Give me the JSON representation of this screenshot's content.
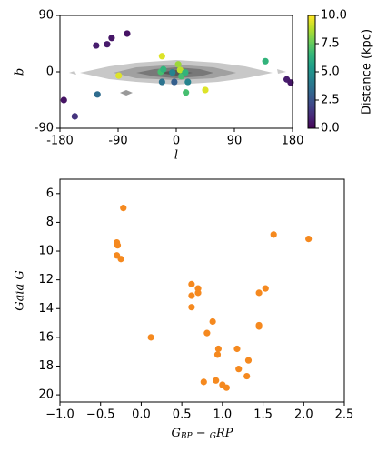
{
  "chart_data": [
    {
      "type": "scatter",
      "xlabel": "l",
      "ylabel": "b",
      "xlim": [
        -180,
        180
      ],
      "ylim": [
        -90,
        90
      ],
      "xticks": [
        -180,
        -90,
        0,
        90,
        180
      ],
      "yticks": [
        -90,
        0,
        90
      ],
      "cmap": "viridis",
      "clim": [
        0,
        10
      ],
      "colorbar_label": "Distance (kpc)",
      "cticks": [
        {
          "value": 0,
          "label": "0.0"
        },
        {
          "value": 2.5,
          "label": "2.5"
        },
        {
          "value": 5,
          "label": "5.0"
        },
        {
          "value": 7.5,
          "label": "7.5"
        },
        {
          "value": 10,
          "label": "10.0"
        }
      ],
      "x": [
        -174,
        -157,
        -122,
        -124,
        -107,
        -100,
        -76,
        -89,
        -22,
        -24,
        -20,
        -22,
        -6,
        -3,
        3,
        6,
        8,
        14,
        18,
        15,
        45,
        138,
        171,
        177
      ],
      "y": [
        -45,
        -71,
        -36,
        42,
        44,
        54,
        61,
        -6,
        25,
        0,
        4,
        -16,
        -1,
        -16,
        12,
        3,
        -7,
        -1,
        -16,
        -33,
        -29,
        17,
        -12,
        -17
      ],
      "c": [
        0.5,
        1.5,
        3.5,
        0.8,
        0.7,
        0.6,
        0.5,
        9.5,
        9.5,
        7,
        6.5,
        3.8,
        4.5,
        3,
        8.5,
        9,
        7,
        6.5,
        4.5,
        7,
        9.5,
        6.5,
        0.8,
        0.6
      ]
    },
    {
      "type": "scatter",
      "xlabel": [
        "G",
        "BP",
        " − ",
        "G",
        "RP"
      ],
      "ylabel": "Gaia G",
      "xlim": [
        -1,
        2.5
      ],
      "ylim": [
        20.5,
        5
      ],
      "color": "#f5891f",
      "xticks": [
        {
          "value": -1,
          "label": "−1.0"
        },
        {
          "value": -0.5,
          "label": "−0.5"
        },
        {
          "value": 0,
          "label": "0.0"
        },
        {
          "value": 0.5,
          "label": "0.5"
        },
        {
          "value": 1,
          "label": "1.0"
        },
        {
          "value": 1.5,
          "label": "1.5"
        },
        {
          "value": 2,
          "label": "2.0"
        },
        {
          "value": 2.5,
          "label": "2.5"
        }
      ],
      "yticks": [
        6,
        8,
        10,
        12,
        14,
        16,
        18,
        20
      ],
      "x": [
        -0.22,
        -0.3,
        -0.29,
        -0.3,
        -0.25,
        1.63,
        2.06,
        0.62,
        0.7,
        0.7,
        0.62,
        0.62,
        1.53,
        1.45,
        0.12,
        0.88,
        0.81,
        1.45,
        1.45,
        0.95,
        0.94,
        1.18,
        1.32,
        1.2,
        1.3,
        0.77,
        0.92,
        1.0,
        1.05
      ],
      "y": [
        7.0,
        9.4,
        9.6,
        10.3,
        10.55,
        8.85,
        9.15,
        12.3,
        12.6,
        12.9,
        13.1,
        13.9,
        12.6,
        12.9,
        16.0,
        14.9,
        15.7,
        15.15,
        15.25,
        16.8,
        17.2,
        16.8,
        17.6,
        18.2,
        18.7,
        19.1,
        19.0,
        19.3,
        19.5
      ]
    }
  ]
}
